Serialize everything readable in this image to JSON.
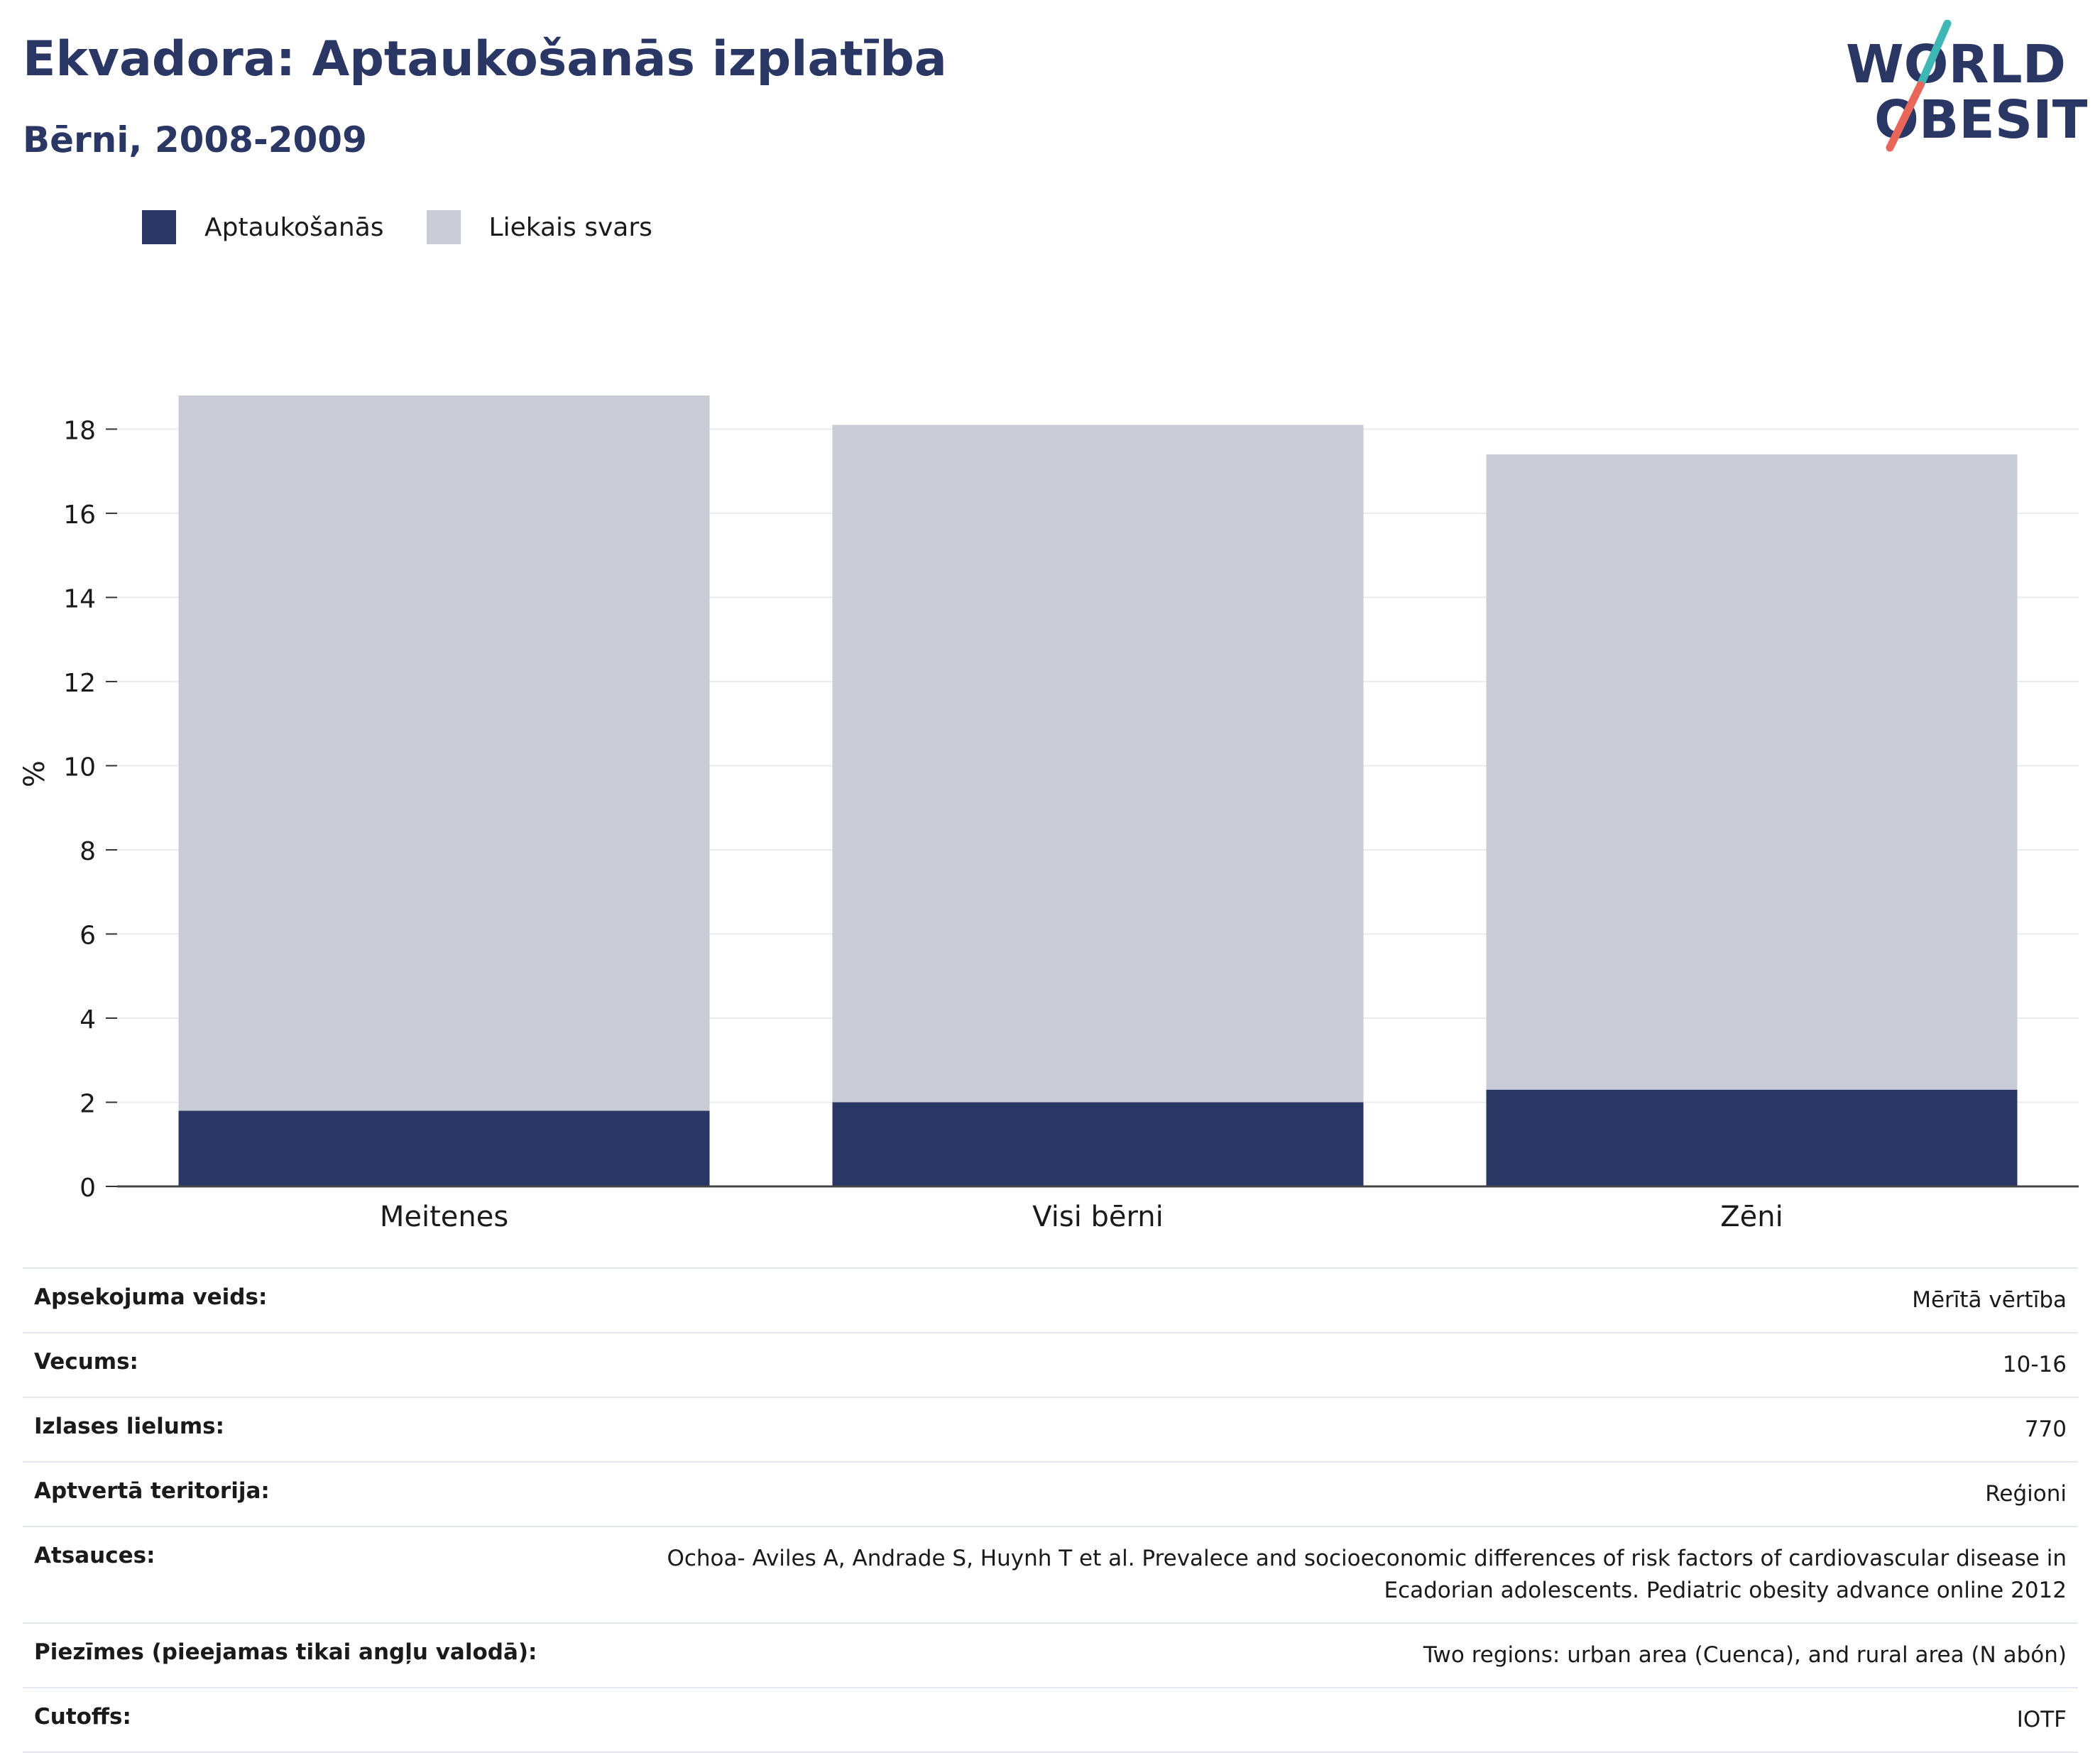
{
  "header": {
    "title": "Ekvadora: Aptaukošanās izplatība",
    "subtitle": "Bērni, 2008-2009"
  },
  "logo": {
    "line1": "WORLD",
    "line2": "OBESITY"
  },
  "colors": {
    "obesity": "#2a3663",
    "overweight": "#c9cbd7",
    "accent_teal": "#3fb8b5",
    "accent_red": "#e8675a"
  },
  "legend": [
    {
      "label": "Aptaukošanās",
      "color": "#2a3663"
    },
    {
      "label": "Liekais svars",
      "color": "#c9cbd7"
    }
  ],
  "chart_data": {
    "type": "bar",
    "stacked": true,
    "categories": [
      "Meitenes",
      "Visi bērni",
      "Zēni"
    ],
    "series": [
      {
        "name": "Aptaukošanās",
        "values": [
          1.8,
          2.0,
          2.3
        ]
      },
      {
        "name": "Liekais svars",
        "values": [
          17.0,
          16.1,
          15.1
        ]
      }
    ],
    "ylabel": "%",
    "ylim": [
      0,
      18.8
    ],
    "yticks": [
      0,
      2,
      4,
      6,
      8,
      10,
      12,
      14,
      16,
      18
    ],
    "grid": true,
    "legend_position": "top-left"
  },
  "info": [
    {
      "key": "Apsekojuma veids:",
      "value": "Mērītā vērtība"
    },
    {
      "key": "Vecums:",
      "value": "10-16"
    },
    {
      "key": "Izlases lielums:",
      "value": "770"
    },
    {
      "key": "Aptvertā teritorija:",
      "value": "Reģioni"
    },
    {
      "key": "Atsauces:",
      "value": "Ochoa- Aviles A, Andrade S, Huynh T et al. Prevalece and socioeconomic differences of risk factors of cardiovascular disease in",
      "value2": "Ecadorian adolescents. Pediatric obesity advance online 2012"
    },
    {
      "key": "Piezīmes (pieejamas tikai angļu valodā):",
      "value": "Two regions: urban area (Cuenca), and rural area (N abón)"
    },
    {
      "key": "Cutoffs:",
      "value": "IOTF"
    }
  ]
}
